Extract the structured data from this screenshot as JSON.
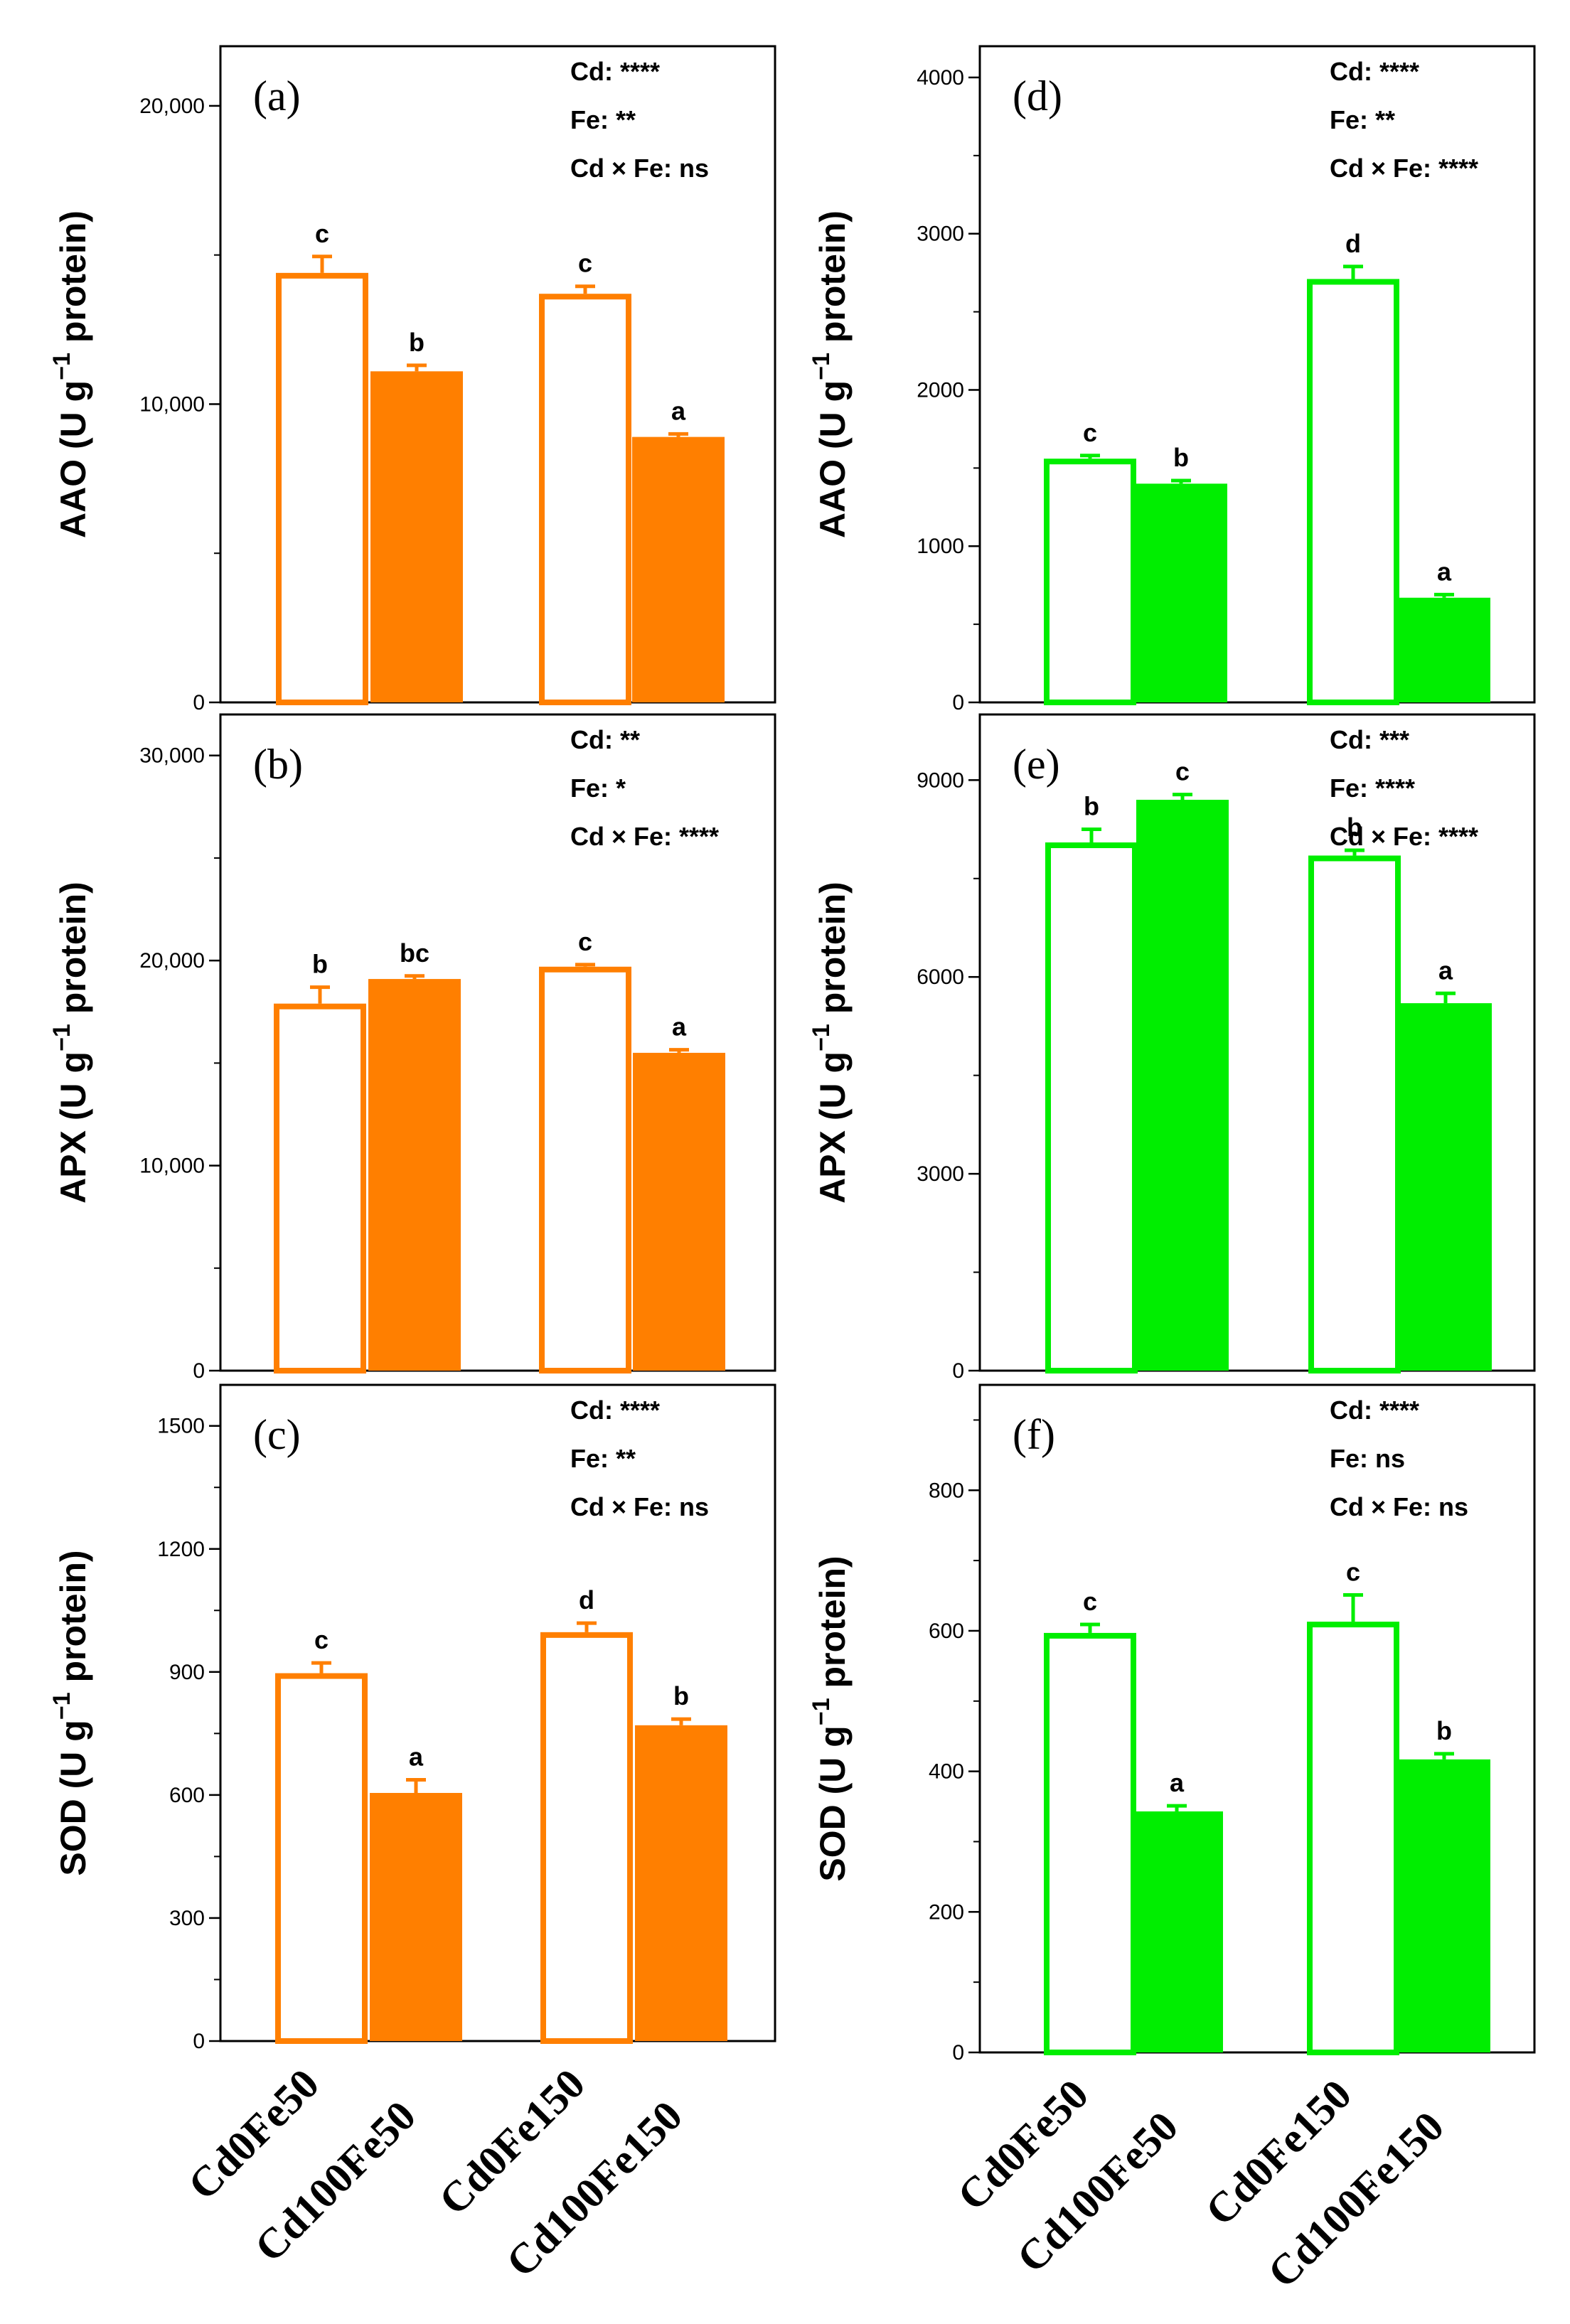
{
  "chart_data": [
    {
      "panel": "(a)",
      "type": "bar",
      "color": "#ff7f00",
      "categories": [
        "Cd0Fe50",
        "Cd100Fe50",
        "Cd0Fe150",
        "Cd100Fe150"
      ],
      "values": [
        14400,
        11100,
        13700,
        8900
      ],
      "errors": [
        550,
        200,
        250,
        100
      ],
      "letters": [
        "c",
        "b",
        "c",
        "a"
      ],
      "ylabel": {
        "main": "AAO (U g",
        "sup": "−1",
        "tail": " protein)"
      },
      "ylim": [
        0,
        22000
      ],
      "yticks": [
        {
          "v": 0,
          "label": "0"
        },
        {
          "v": 10000,
          "label": "10,000"
        },
        {
          "v": 20000,
          "label": "20,000"
        }
      ],
      "minor_step": 5000,
      "stats": [
        "Cd: ****",
        "Fe: **",
        "Cd × Fe: ns"
      ]
    },
    {
      "panel": "(b)",
      "type": "bar",
      "color": "#ff7f00",
      "categories": [
        "Cd0Fe50",
        "Cd100Fe50",
        "Cd0Fe150",
        "Cd100Fe150"
      ],
      "values": [
        17900,
        19100,
        19700,
        15500
      ],
      "errors": [
        800,
        150,
        100,
        150
      ],
      "letters": [
        "b",
        "bc",
        "c",
        "a"
      ],
      "ylabel": {
        "main": "APX (U g",
        "sup": "−1",
        "tail": " protein)"
      },
      "ylim": [
        0,
        32000
      ],
      "yticks": [
        {
          "v": 0,
          "label": "0"
        },
        {
          "v": 10000,
          "label": "10,000"
        },
        {
          "v": 20000,
          "label": "20,000"
        },
        {
          "v": 30000,
          "label": "30,000"
        }
      ],
      "minor_step": 5000,
      "stats": [
        "Cd: **",
        "Fe: *",
        "Cd × Fe: ****"
      ]
    },
    {
      "panel": "(c)",
      "type": "bar",
      "color": "#ff7f00",
      "categories": [
        "Cd0Fe50",
        "Cd100Fe50",
        "Cd0Fe150",
        "Cd100Fe150"
      ],
      "values": [
        897,
        605,
        997,
        770
      ],
      "errors": [
        25,
        32,
        22,
        15
      ],
      "letters": [
        "c",
        "a",
        "d",
        "b"
      ],
      "ylabel": {
        "main": "SOD (U g",
        "sup": "−1",
        "tail": " protein)"
      },
      "ylim": [
        0,
        1600
      ],
      "yticks": [
        {
          "v": 0,
          "label": "0"
        },
        {
          "v": 300,
          "label": "300"
        },
        {
          "v": 600,
          "label": "600"
        },
        {
          "v": 900,
          "label": "900"
        },
        {
          "v": 1200,
          "label": "1200"
        },
        {
          "v": 1500,
          "label": "1500"
        }
      ],
      "minor_step": 150,
      "stats": [
        "Cd: ****",
        "Fe: **",
        "Cd × Fe: ns"
      ]
    },
    {
      "panel": "(d)",
      "type": "bar",
      "color": "#00ee00",
      "categories": [
        "Cd0Fe50",
        "Cd100Fe50",
        "Cd0Fe150",
        "Cd100Fe150"
      ],
      "values": [
        1560,
        1400,
        2710,
        670
      ],
      "errors": [
        20,
        20,
        80,
        20
      ],
      "letters": [
        "c",
        "b",
        "d",
        "a"
      ],
      "ylabel": {
        "main": "AAO (U g",
        "sup": "−1",
        "tail": " protein)"
      },
      "ylim": [
        0,
        4200
      ],
      "yticks": [
        {
          "v": 0,
          "label": "0"
        },
        {
          "v": 1000,
          "label": "1000"
        },
        {
          "v": 2000,
          "label": "2000"
        },
        {
          "v": 3000,
          "label": "3000"
        },
        {
          "v": 4000,
          "label": "4000"
        }
      ],
      "minor_step": 500,
      "stats": [
        "Cd: ****",
        "Fe: **",
        "Cd × Fe: ****"
      ]
    },
    {
      "panel": "(e)",
      "type": "bar",
      "color": "#00ee00",
      "categories": [
        "Cd0Fe50",
        "Cd100Fe50",
        "Cd0Fe150",
        "Cd100Fe150"
      ],
      "values": [
        8050,
        8700,
        7850,
        5600
      ],
      "errors": [
        200,
        80,
        80,
        150
      ],
      "letters": [
        "b",
        "c",
        "b",
        "a"
      ],
      "ylabel": {
        "main": "APX (U g",
        "sup": "−1",
        "tail": " protein)"
      },
      "ylim": [
        0,
        10000
      ],
      "yticks": [
        {
          "v": 0,
          "label": "0"
        },
        {
          "v": 3000,
          "label": "3000"
        },
        {
          "v": 6000,
          "label": "6000"
        },
        {
          "v": 9000,
          "label": "9000"
        }
      ],
      "minor_step": 1500,
      "stats": [
        "Cd: ***",
        "Fe: ****",
        "Cd × Fe: ****"
      ]
    },
    {
      "panel": "(f)",
      "type": "bar",
      "color": "#00ee00",
      "categories": [
        "Cd0Fe50",
        "Cd100Fe50",
        "Cd0Fe150",
        "Cd100Fe150"
      ],
      "values": [
        597,
        343,
        613,
        417
      ],
      "errors": [
        12,
        8,
        38,
        8
      ],
      "letters": [
        "c",
        "a",
        "c",
        "b"
      ],
      "ylabel": {
        "main": "SOD (U g",
        "sup": "−1",
        "tail": " protein)"
      },
      "ylim": [
        0,
        950
      ],
      "yticks": [
        {
          "v": 0,
          "label": "0"
        },
        {
          "v": 200,
          "label": "200"
        },
        {
          "v": 400,
          "label": "400"
        },
        {
          "v": 600,
          "label": "600"
        },
        {
          "v": 800,
          "label": "800"
        }
      ],
      "minor_step": 100,
      "stats": [
        "Cd: ****",
        "Fe: ns",
        "Cd × Fe: ns"
      ]
    }
  ],
  "bar_styles": [
    "open",
    "filled",
    "open",
    "filled"
  ]
}
